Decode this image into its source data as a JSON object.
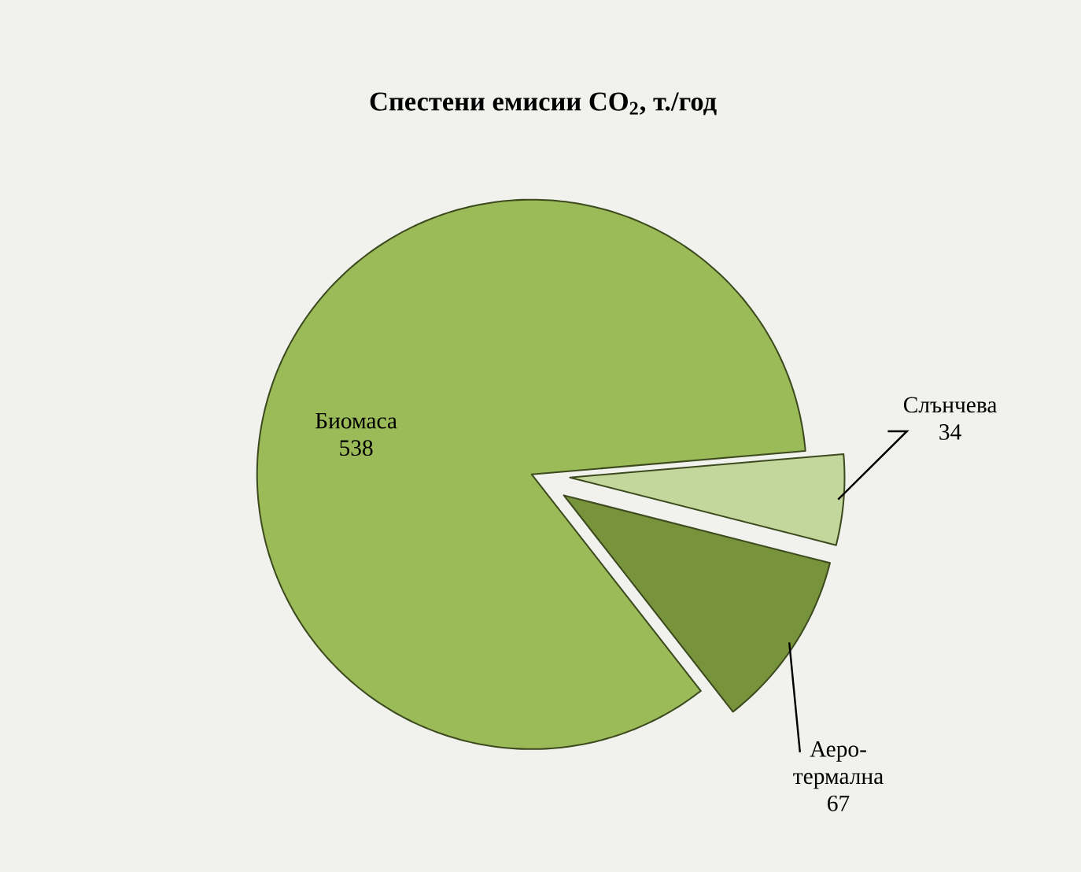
{
  "chart_data": {
    "type": "pie",
    "title": "Спестени емисии CO$_{2}$, т./год",
    "categories": [
      "Биомаса",
      "Слънчева",
      "Аеро-термална"
    ],
    "values": [
      538,
      34,
      67
    ],
    "colors": [
      "#9bbb59",
      "#c3d69b",
      "#77933c"
    ],
    "data_labels": true
  }
}
